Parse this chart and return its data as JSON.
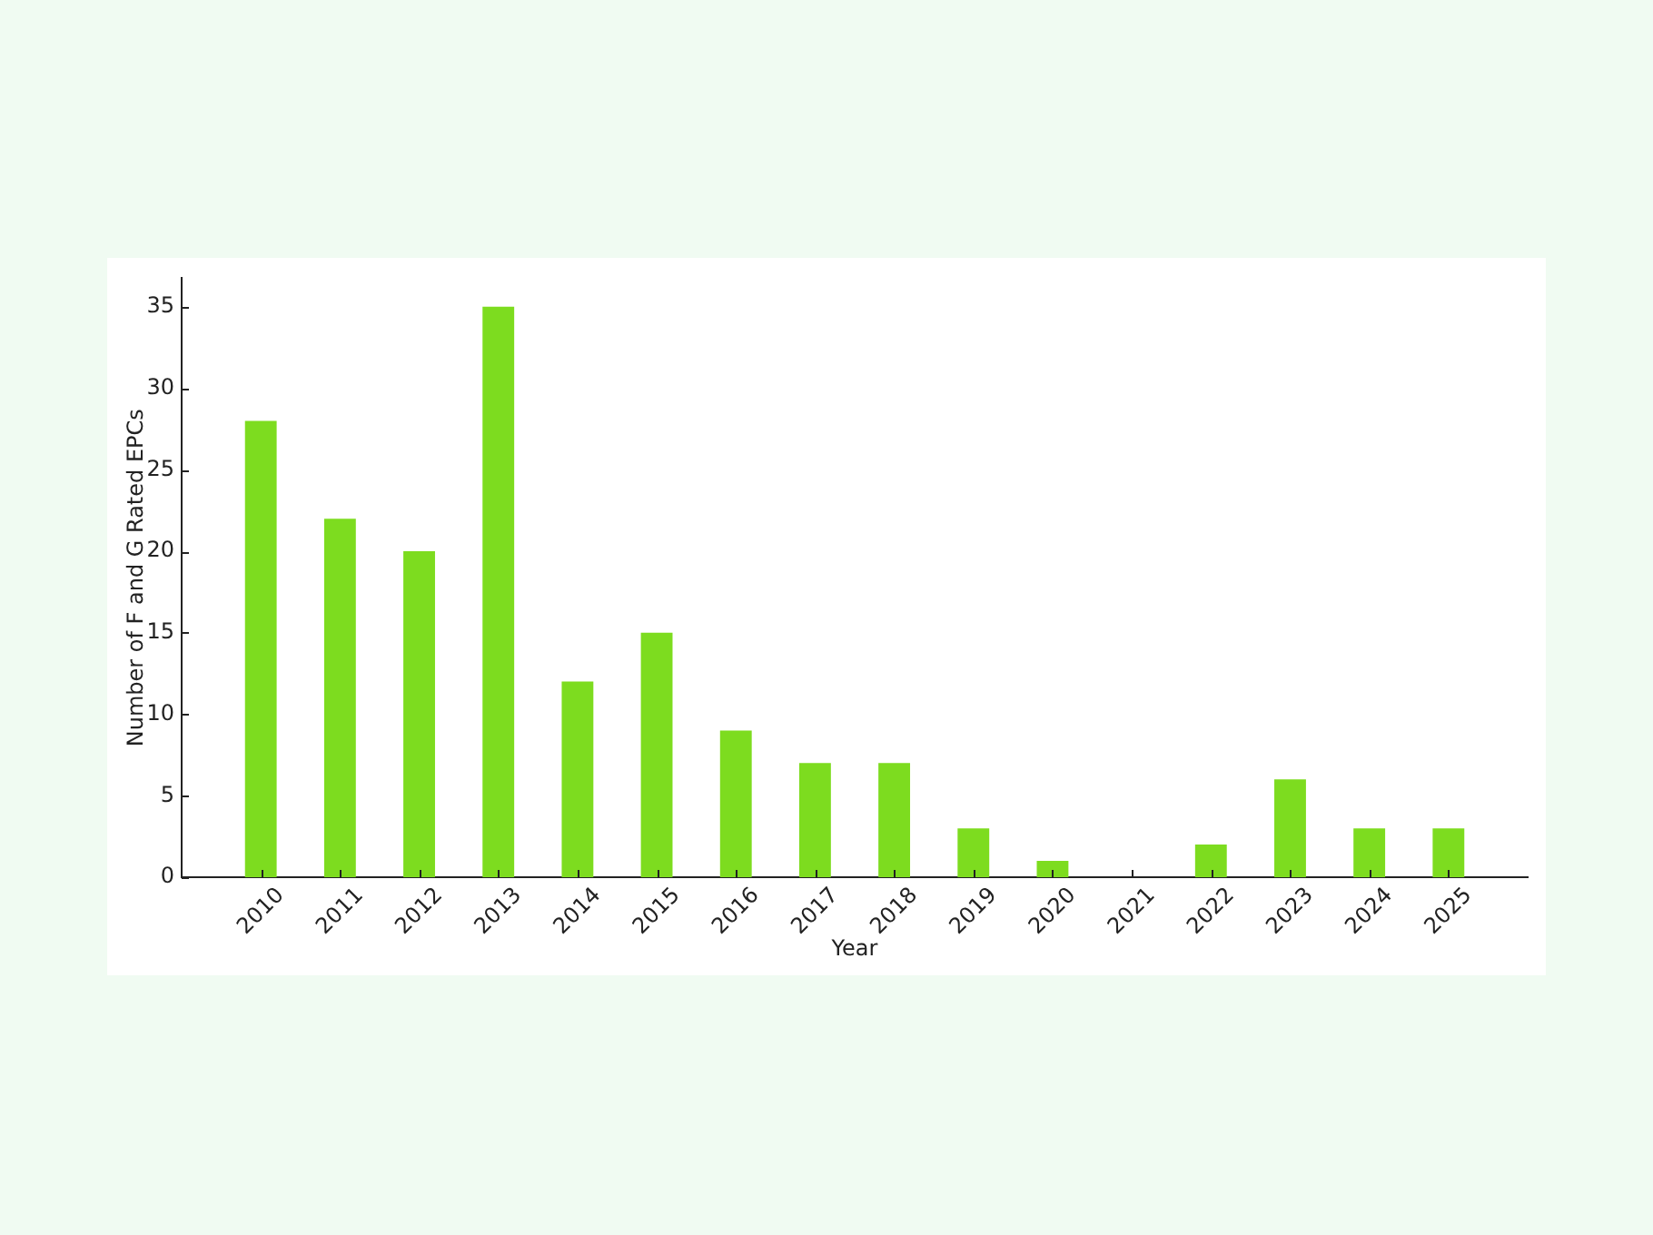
{
  "chart_data": {
    "type": "bar",
    "xlabel": "Year",
    "ylabel": "Number of F and G Rated EPCs",
    "categories": [
      "2010",
      "2011",
      "2012",
      "2013",
      "2014",
      "2015",
      "2016",
      "2017",
      "2018",
      "2019",
      "2020",
      "2021",
      "2022",
      "2023",
      "2024",
      "2025"
    ],
    "values": [
      28,
      22,
      20,
      35,
      12,
      15,
      9,
      7,
      7,
      3,
      1,
      0,
      2,
      6,
      3,
      3
    ],
    "color": "#7ddc1f",
    "ylim": [
      0,
      36.75
    ],
    "yticks": [
      0,
      5,
      10,
      15,
      20,
      25,
      30,
      35
    ]
  }
}
